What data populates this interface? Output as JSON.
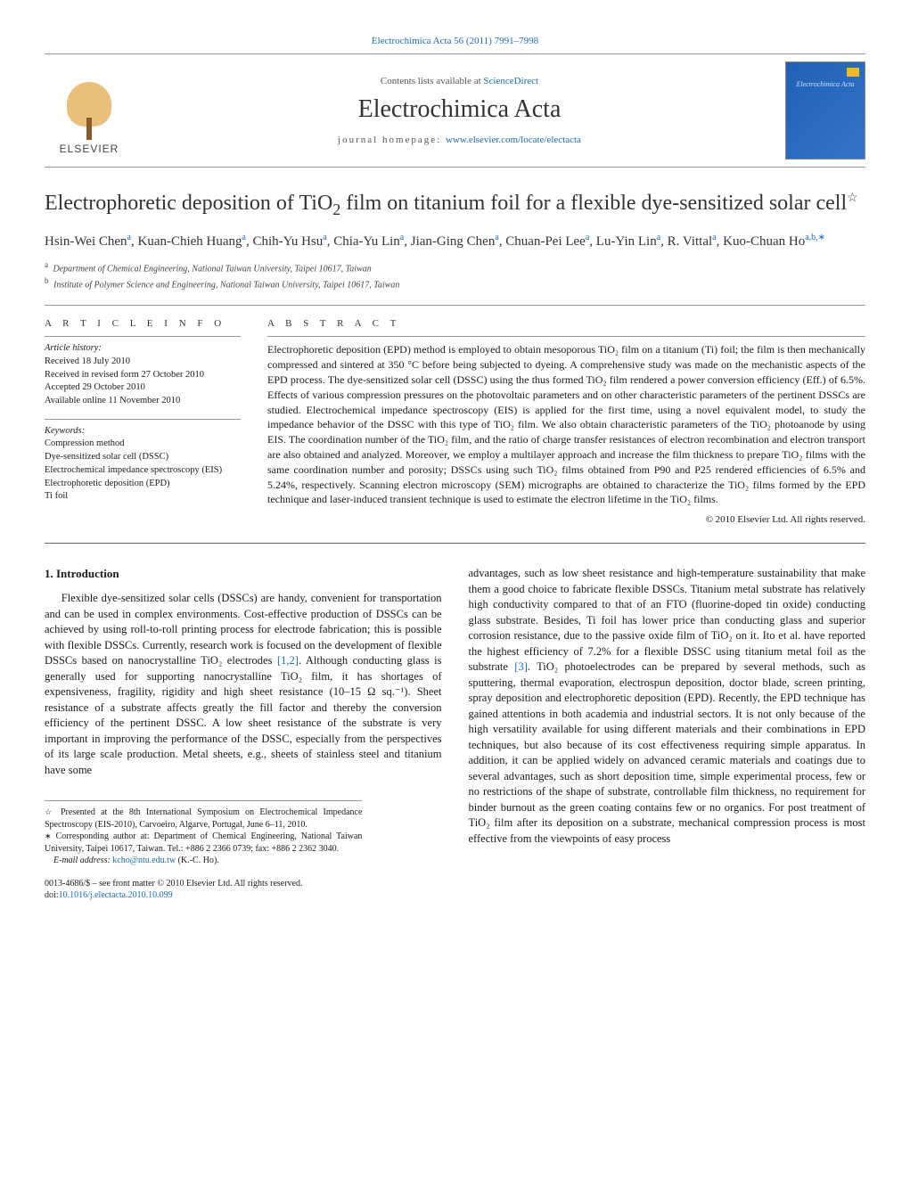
{
  "header": {
    "citation": "Electrochimica Acta 56 (2011) 7991–7998",
    "contents_prefix": "Contents lists available at ",
    "contents_link": "ScienceDirect",
    "journal_name": "Electrochimica Acta",
    "homepage_prefix": "journal homepage: ",
    "homepage_link": "www.elsevier.com/locate/electacta",
    "elsevier_name": "ELSEVIER",
    "cover_text": "Electrochimica Acta"
  },
  "article": {
    "title_part1": "Electrophoretic deposition of TiO",
    "title_sub": "2",
    "title_part2": " film on titanium foil for a flexible dye-sensitized solar cell",
    "title_star": "☆",
    "authors_html": "Hsin-Wei Chen<sup>a</sup>, Kuan-Chieh Huang<sup>a</sup>, Chih-Yu Hsu<sup>a</sup>, Chia-Yu Lin<sup>a</sup>, Jian-Ging Chen<sup>a</sup>, Chuan-Pei Lee<sup>a</sup>, Lu-Yin Lin<sup>a</sup>, R. Vittal<sup>a</sup>, Kuo-Chuan Ho<sup>a,b,∗</sup>",
    "affil_a": "Department of Chemical Engineering, National Taiwan University, Taipei 10617, Taiwan",
    "affil_b": "Institute of Polymer Science and Engineering, National Taiwan University, Taipei 10617, Taiwan"
  },
  "info": {
    "header": "A R T I C L E   I N F O",
    "history_label": "Article history:",
    "received": "Received 18 July 2010",
    "revised": "Received in revised form 27 October 2010",
    "accepted": "Accepted 29 October 2010",
    "online": "Available online 11 November 2010",
    "keywords_label": "Keywords:",
    "keywords": [
      "Compression method",
      "Dye-sensitized solar cell (DSSC)",
      "Electrochemical impedance spectroscopy (EIS)",
      "Electrophoretic deposition (EPD)",
      "Ti foil"
    ]
  },
  "abstract": {
    "header": "A B S T R A C T",
    "text": "Electrophoretic deposition (EPD) method is employed to obtain mesoporous TiO₂ film on a titanium (Ti) foil; the film is then mechanically compressed and sintered at 350 °C before being subjected to dyeing. A comprehensive study was made on the mechanistic aspects of the EPD process. The dye-sensitized solar cell (DSSC) using the thus formed TiO₂ film rendered a power conversion efficiency (Eff.) of 6.5%. Effects of various compression pressures on the photovoltaic parameters and on other characteristic parameters of the pertinent DSSCs are studied. Electrochemical impedance spectroscopy (EIS) is applied for the first time, using a novel equivalent model, to study the impedance behavior of the DSSC with this type of TiO₂ film. We also obtain characteristic parameters of the TiO₂ photoanode by using EIS. The coordination number of the TiO₂ film, and the ratio of charge transfer resistances of electron recombination and electron transport are also obtained and analyzed. Moreover, we employ a multilayer approach and increase the film thickness to prepare TiO₂ films with the same coordination number and porosity; DSSCs using such TiO₂ films obtained from P90 and P25 rendered efficiencies of 6.5% and 5.24%, respectively. Scanning electron microscopy (SEM) micrographs are obtained to characterize the TiO₂ films formed by the EPD technique and laser-induced transient technique is used to estimate the electron lifetime in the TiO₂ films.",
    "copyright": "© 2010 Elsevier Ltd. All rights reserved."
  },
  "body": {
    "intro_heading": "1.  Introduction",
    "col1_p1_a": "Flexible dye-sensitized solar cells (DSSCs) are handy, convenient for transportation and can be used in complex environments. Cost-effective production of DSSCs can be achieved by using roll-to-roll printing process for electrode fabrication; this is possible with flexible DSSCs. Currently, research work is focused on the development of flexible DSSCs based on nanocrystalline TiO₂ electrodes ",
    "col1_ref12": "[1,2]",
    "col1_p1_b": ". Although conducting glass is generally used for supporting nanocrystalline TiO₂ film, it has shortages of expensiveness, fragility, rigidity and high sheet resistance (10–15 Ω sq.⁻¹). Sheet resistance of a substrate affects greatly the fill factor and thereby the conversion efficiency of the pertinent DSSC. A low sheet resistance of the substrate is very important in improving the performance of the DSSC, especially from the perspectives of its large scale production. Metal sheets, e.g., sheets of stainless steel and titanium have some",
    "col2_p1_a": "advantages, such as low sheet resistance and high-temperature sustainability that make them a good choice to fabricate flexible DSSCs. Titanium metal substrate has relatively high conductivity compared to that of an FTO (fluorine-doped tin oxide) conducting glass substrate. Besides, Ti foil has lower price than conducting glass and superior corrosion resistance, due to the passive oxide film of TiO₂ on it. Ito et al. have reported the highest efficiency of 7.2% for a flexible DSSC using titanium metal foil as the substrate ",
    "col2_ref3": "[3]",
    "col2_p1_b": ". TiO₂ photoelectrodes can be prepared by several methods, such as sputtering, thermal evaporation, electrospun deposition, doctor blade, screen printing, spray deposition and electrophoretic deposition (EPD). Recently, the EPD technique has gained attentions in both academia and industrial sectors. It is not only because of the high versatility available for using different materials and their combinations in EPD techniques, but also because of its cost effectiveness requiring simple apparatus. In addition, it can be applied widely on advanced ceramic materials and coatings due to several advantages, such as short deposition time, simple experimental process, few or no restrictions of the shape of substrate, controllable film thickness, no requirement for binder burnout as the green coating contains few or no organics. For post treatment of TiO₂ film after its deposition on a substrate, mechanical compression process is most effective from the viewpoints of easy process"
  },
  "footnotes": {
    "star_text": "Presented at the 8th International Symposium on Electrochemical Impedance Spectroscopy (EIS-2010), Carvoeiro, Algarve, Portugal, June 6–11, 2010.",
    "corr_text": "Corresponding author at: Department of Chemical Engineering, National Taiwan University, Taipei 10617, Taiwan. Tel.: +886 2 2366 0739; fax: +886 2 2362 3040.",
    "email_label": "E-mail address: ",
    "email": "kcho@ntu.edu.tw",
    "email_suffix": " (K.-C. Ho).",
    "issn_line": "0013-4686/$ – see front matter © 2010 Elsevier Ltd. All rights reserved.",
    "doi_prefix": "doi:",
    "doi": "10.1016/j.electacta.2010.10.099"
  },
  "colors": {
    "link": "#1a6bbd",
    "cover_bg": "#2060b5",
    "elsevier_orange": "#d4a24a"
  }
}
